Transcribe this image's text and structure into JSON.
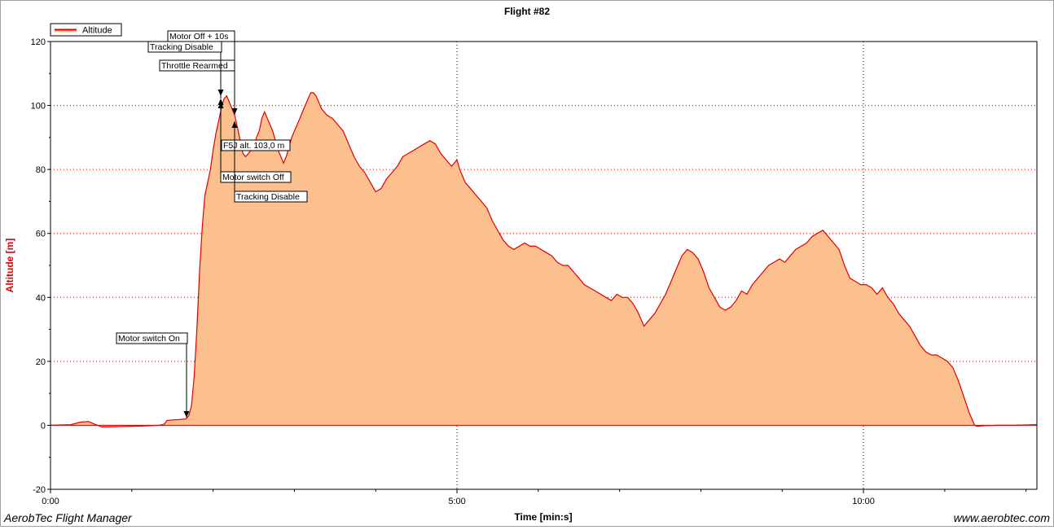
{
  "chart_data": {
    "type": "area",
    "title": "Flight #82",
    "xlabel": "Time [min:s]",
    "ylabel": "Altitude [m]",
    "xlim": [
      0,
      728
    ],
    "ylim": [
      -20,
      120
    ],
    "x_ticks": [
      {
        "value": 0,
        "label": "0:00"
      },
      {
        "value": 300,
        "label": "5:00"
      },
      {
        "value": 600,
        "label": "10:00"
      }
    ],
    "y_ticks": [
      -20,
      0,
      20,
      40,
      60,
      80,
      100,
      120
    ],
    "grid": true,
    "legend_position": "top-left",
    "series": [
      {
        "name": "Altitude",
        "color": "#e00000",
        "fill": "#fbc08e",
        "points": [
          [
            0,
            0
          ],
          [
            15,
            0.2
          ],
          [
            22,
            1
          ],
          [
            28,
            1.2
          ],
          [
            33,
            0.3
          ],
          [
            38,
            -0.5
          ],
          [
            50,
            -0.4
          ],
          [
            60,
            -0.3
          ],
          [
            70,
            -0.2
          ],
          [
            80,
            0
          ],
          [
            84,
            0.4
          ],
          [
            86,
            1.5
          ],
          [
            90,
            1.7
          ],
          [
            95,
            1.8
          ],
          [
            100,
            2
          ],
          [
            102,
            3
          ],
          [
            104,
            6
          ],
          [
            106,
            15
          ],
          [
            108,
            30
          ],
          [
            110,
            48
          ],
          [
            112,
            62
          ],
          [
            114,
            72
          ],
          [
            116,
            76
          ],
          [
            118,
            80
          ],
          [
            120,
            86
          ],
          [
            122,
            91
          ],
          [
            124,
            95
          ],
          [
            126,
            99
          ],
          [
            128,
            102
          ],
          [
            130,
            103
          ],
          [
            132,
            101
          ],
          [
            134,
            99
          ],
          [
            136,
            97
          ],
          [
            138,
            93
          ],
          [
            140,
            89
          ],
          [
            142,
            85
          ],
          [
            144,
            84
          ],
          [
            146,
            85
          ],
          [
            148,
            86
          ],
          [
            150,
            87
          ],
          [
            152,
            90
          ],
          [
            154,
            92
          ],
          [
            156,
            96
          ],
          [
            158,
            98
          ],
          [
            160,
            96
          ],
          [
            162,
            94
          ],
          [
            164,
            92
          ],
          [
            166,
            89
          ],
          [
            168,
            86
          ],
          [
            170,
            84
          ],
          [
            172,
            82
          ],
          [
            174,
            84
          ],
          [
            176,
            87
          ],
          [
            178,
            90
          ],
          [
            180,
            92
          ],
          [
            182,
            94
          ],
          [
            184,
            96
          ],
          [
            186,
            98
          ],
          [
            188,
            100
          ],
          [
            190,
            102
          ],
          [
            192,
            104
          ],
          [
            194,
            104
          ],
          [
            196,
            103
          ],
          [
            198,
            101
          ],
          [
            200,
            99
          ],
          [
            204,
            97
          ],
          [
            208,
            96
          ],
          [
            212,
            94
          ],
          [
            216,
            92
          ],
          [
            220,
            88
          ],
          [
            224,
            84
          ],
          [
            228,
            81
          ],
          [
            232,
            79
          ],
          [
            236,
            76
          ],
          [
            240,
            73
          ],
          [
            244,
            74
          ],
          [
            248,
            77
          ],
          [
            252,
            79
          ],
          [
            256,
            81
          ],
          [
            260,
            84
          ],
          [
            264,
            85
          ],
          [
            268,
            86
          ],
          [
            272,
            87
          ],
          [
            276,
            88
          ],
          [
            280,
            89
          ],
          [
            284,
            88
          ],
          [
            288,
            85
          ],
          [
            292,
            83
          ],
          [
            296,
            81
          ],
          [
            300,
            83
          ],
          [
            302,
            80
          ],
          [
            306,
            76
          ],
          [
            310,
            74
          ],
          [
            314,
            72
          ],
          [
            318,
            70
          ],
          [
            322,
            68
          ],
          [
            326,
            64
          ],
          [
            330,
            61
          ],
          [
            334,
            58
          ],
          [
            338,
            56
          ],
          [
            342,
            55
          ],
          [
            346,
            56
          ],
          [
            350,
            57
          ],
          [
            354,
            56
          ],
          [
            358,
            56
          ],
          [
            362,
            55
          ],
          [
            366,
            54
          ],
          [
            370,
            53
          ],
          [
            374,
            51
          ],
          [
            378,
            50
          ],
          [
            382,
            50
          ],
          [
            386,
            48
          ],
          [
            390,
            46
          ],
          [
            394,
            44
          ],
          [
            398,
            43
          ],
          [
            402,
            42
          ],
          [
            406,
            41
          ],
          [
            410,
            40
          ],
          [
            414,
            39
          ],
          [
            418,
            41
          ],
          [
            422,
            40
          ],
          [
            426,
            40
          ],
          [
            430,
            38
          ],
          [
            434,
            35
          ],
          [
            438,
            31
          ],
          [
            442,
            33
          ],
          [
            446,
            35
          ],
          [
            450,
            38
          ],
          [
            454,
            41
          ],
          [
            458,
            45
          ],
          [
            462,
            49
          ],
          [
            466,
            53
          ],
          [
            470,
            55
          ],
          [
            474,
            54
          ],
          [
            478,
            52
          ],
          [
            482,
            48
          ],
          [
            486,
            43
          ],
          [
            490,
            40
          ],
          [
            494,
            37
          ],
          [
            498,
            36
          ],
          [
            502,
            37
          ],
          [
            506,
            39
          ],
          [
            510,
            42
          ],
          [
            514,
            41
          ],
          [
            518,
            44
          ],
          [
            522,
            46
          ],
          [
            526,
            48
          ],
          [
            530,
            50
          ],
          [
            534,
            51
          ],
          [
            538,
            52
          ],
          [
            542,
            51
          ],
          [
            546,
            53
          ],
          [
            550,
            55
          ],
          [
            554,
            56
          ],
          [
            558,
            57
          ],
          [
            562,
            59
          ],
          [
            566,
            60
          ],
          [
            570,
            61
          ],
          [
            574,
            59
          ],
          [
            578,
            57
          ],
          [
            582,
            55
          ],
          [
            586,
            50
          ],
          [
            590,
            46
          ],
          [
            594,
            45
          ],
          [
            598,
            44
          ],
          [
            602,
            44
          ],
          [
            606,
            43
          ],
          [
            610,
            41
          ],
          [
            614,
            43
          ],
          [
            618,
            40
          ],
          [
            622,
            38
          ],
          [
            626,
            35
          ],
          [
            630,
            33
          ],
          [
            634,
            31
          ],
          [
            638,
            28
          ],
          [
            642,
            25
          ],
          [
            646,
            23
          ],
          [
            650,
            22
          ],
          [
            654,
            22
          ],
          [
            658,
            21
          ],
          [
            662,
            20
          ],
          [
            666,
            18
          ],
          [
            670,
            14
          ],
          [
            674,
            9
          ],
          [
            678,
            4
          ],
          [
            680,
            2
          ],
          [
            682,
            0
          ],
          [
            684,
            -0.3
          ],
          [
            690,
            -0.1
          ],
          [
            700,
            0
          ],
          [
            710,
            0
          ],
          [
            720,
            0.1
          ],
          [
            728,
            0.2
          ]
        ]
      }
    ],
    "annotations": [
      {
        "label": "Motor switch On",
        "x": 100,
        "y": 2,
        "marker": "down"
      },
      {
        "label": "Throttle Rearmed",
        "x": 126,
        "y": 104,
        "marker": "down"
      },
      {
        "label": "Tracking Disable",
        "x": 126,
        "y": 100,
        "marker": "up"
      },
      {
        "label": "Motor Off + 10s",
        "x": 136,
        "y": 97,
        "marker": "down"
      },
      {
        "label": "F5J alt. 103,0 m",
        "x": 126,
        "y": 103,
        "marker": "none"
      },
      {
        "label": "Motor switch Off",
        "x": 126,
        "y": 100,
        "marker": "up"
      },
      {
        "label": "Tracking Disable",
        "x": 136,
        "y": 94,
        "marker": "up"
      }
    ]
  },
  "footer": {
    "left": "AerobTec Flight Manager",
    "right": "www.aerobtec.com"
  }
}
